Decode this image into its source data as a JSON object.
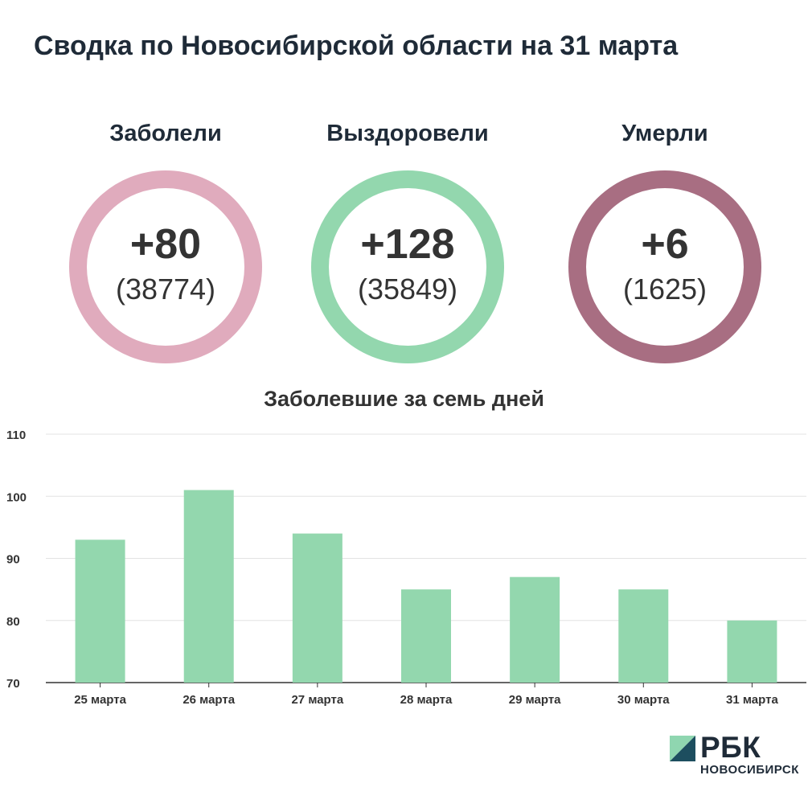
{
  "title": "Сводка по Новосибирской области на 31 марта",
  "stats": [
    {
      "label": "Заболели",
      "delta": "+80",
      "total": "(38774)",
      "color": "#e0abbd"
    },
    {
      "label": "Выздоровели",
      "delta": "+128",
      "total": "(35849)",
      "color": "#93d7ae"
    },
    {
      "label": "Умерли",
      "delta": "+6",
      "total": "(1625)",
      "color": "#a86e82"
    }
  ],
  "chart_data": {
    "type": "bar",
    "title": "Заболевшие за семь дней",
    "categories": [
      "25 марта",
      "26 марта",
      "27 марта",
      "28 марта",
      "29 марта",
      "30 марта",
      "31 марта"
    ],
    "values": [
      93,
      101,
      94,
      85,
      87,
      85,
      80
    ],
    "ylim": [
      70,
      110
    ],
    "yticks": [
      70,
      80,
      90,
      100,
      110
    ],
    "grid": true,
    "bar_color": "#93d7ae"
  },
  "logo": {
    "name": "РБК",
    "sub": "НОВОСИБИРСК"
  }
}
